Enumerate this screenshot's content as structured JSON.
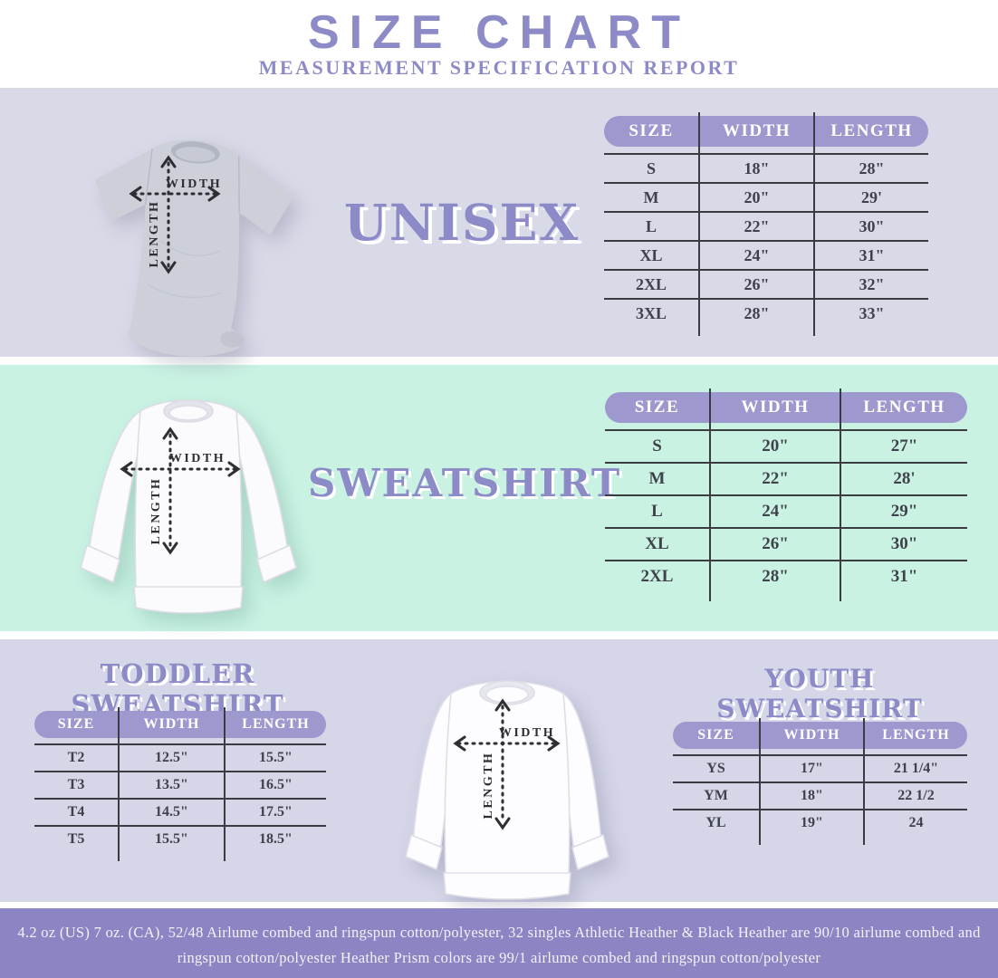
{
  "header": {
    "title": "SIZE CHART",
    "subtitle": "MEASUREMENT SPECIFICATION REPORT"
  },
  "diagram": {
    "width_label": "WIDTH",
    "length_label": "LENGTH"
  },
  "unisex": {
    "heading": "UNISEX",
    "columns": [
      "SIZE",
      "WIDTH",
      "LENGTH"
    ],
    "rows": [
      [
        "S",
        "18\"",
        "28\""
      ],
      [
        "M",
        "20\"",
        "29'"
      ],
      [
        "L",
        "22\"",
        "30\""
      ],
      [
        "XL",
        "24\"",
        "31\""
      ],
      [
        "2XL",
        "26\"",
        "32\""
      ],
      [
        "3XL",
        "28\"",
        "33\""
      ]
    ]
  },
  "sweatshirt": {
    "heading": "SWEATSHIRT",
    "columns": [
      "SIZE",
      "WIDTH",
      "LENGTH"
    ],
    "rows": [
      [
        "S",
        "20\"",
        "27\""
      ],
      [
        "M",
        "22\"",
        "28'"
      ],
      [
        "L",
        "24\"",
        "29\""
      ],
      [
        "XL",
        "26\"",
        "30\""
      ],
      [
        "2XL",
        "28\"",
        "31\""
      ]
    ]
  },
  "toddler": {
    "heading": "TODDLER SWEATSHIRT",
    "columns": [
      "SIZE",
      "WIDTH",
      "LENGTH"
    ],
    "rows": [
      [
        "T2",
        "12.5\"",
        "15.5\""
      ],
      [
        "T3",
        "13.5\"",
        "16.5\""
      ],
      [
        "T4",
        "14.5\"",
        "17.5\""
      ],
      [
        "T5",
        "15.5\"",
        "18.5\""
      ]
    ]
  },
  "youth": {
    "heading": "YOUTH SWEATSHIRT",
    "columns": [
      "SIZE",
      "WIDTH",
      "LENGTH"
    ],
    "rows": [
      [
        "YS",
        "17\"",
        "21 1/4\""
      ],
      [
        "YM",
        "18\"",
        "22 1/2"
      ],
      [
        "YL",
        "19\"",
        "24"
      ]
    ]
  },
  "footer": {
    "line1": "4.2 oz (US) 7 oz. (CA), 52/48 Airlume combed and ringspun cotton/polyester, 32 singles Athletic Heather & Black Heather are 90/10 airlume combed and",
    "line2": "ringspun cotton/polyester Heather Prism colors are 99/1 airlume combed and ringspun cotton/polyester"
  },
  "colors": {
    "accent": "#8d8bc7",
    "pill": "#9d99cf",
    "lav1": "#d9dae8",
    "mint": "#c9f2e3",
    "lav2": "#d5d6e8",
    "footerbg": "#8b85c3",
    "line": "#3b3b42",
    "celltext": "#3f424b",
    "tee": "#cdd0d8"
  }
}
